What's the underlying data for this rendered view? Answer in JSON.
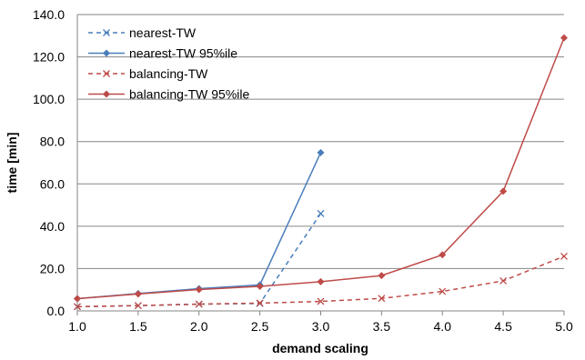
{
  "chart_data": {
    "type": "line",
    "title": "",
    "xlabel": "demand scaling",
    "ylabel": "time [min]",
    "xlim": [
      1.0,
      5.0
    ],
    "ylim": [
      0,
      140
    ],
    "x_ticks": [
      "1.0",
      "1.5",
      "2.0",
      "2.5",
      "3.0",
      "3.5",
      "4.0",
      "4.5",
      "5.0"
    ],
    "y_ticks": [
      "0.0",
      "20.0",
      "40.0",
      "60.0",
      "80.0",
      "100.0",
      "120.0",
      "140.0"
    ],
    "grid": "horizontal",
    "legend_position": "top-left",
    "series": [
      {
        "name": "nearest-TW",
        "color": "#4a7ebb",
        "line_style": "dashed",
        "marker": "x",
        "x": [
          1.0,
          1.5,
          2.0,
          2.5,
          3.0
        ],
        "y": [
          2.0,
          2.5,
          3.2,
          3.5,
          46.0
        ]
      },
      {
        "name": "nearest-TW 95%ile",
        "color": "#4a7ebb",
        "line_style": "solid",
        "marker": "diamond",
        "x": [
          1.0,
          1.5,
          2.0,
          2.5,
          3.0
        ],
        "y": [
          5.8,
          8.2,
          10.5,
          12.3,
          74.8
        ]
      },
      {
        "name": "balancing-TW",
        "color": "#be4b48",
        "line_style": "dashed",
        "marker": "x",
        "x": [
          1.0,
          1.5,
          2.0,
          2.5,
          3.0,
          3.5,
          4.0,
          4.5,
          5.0
        ],
        "y": [
          2.0,
          2.5,
          3.2,
          3.7,
          4.5,
          5.9,
          9.2,
          14.2,
          25.8
        ]
      },
      {
        "name": "balancing-TW 95%ile",
        "color": "#be4b48",
        "line_style": "solid",
        "marker": "diamond",
        "x": [
          1.0,
          1.5,
          2.0,
          2.5,
          3.0,
          3.5,
          4.0,
          4.5,
          5.0
        ],
        "y": [
          5.8,
          8.0,
          10.1,
          11.6,
          13.8,
          16.7,
          26.5,
          56.5,
          129.0
        ]
      }
    ]
  }
}
